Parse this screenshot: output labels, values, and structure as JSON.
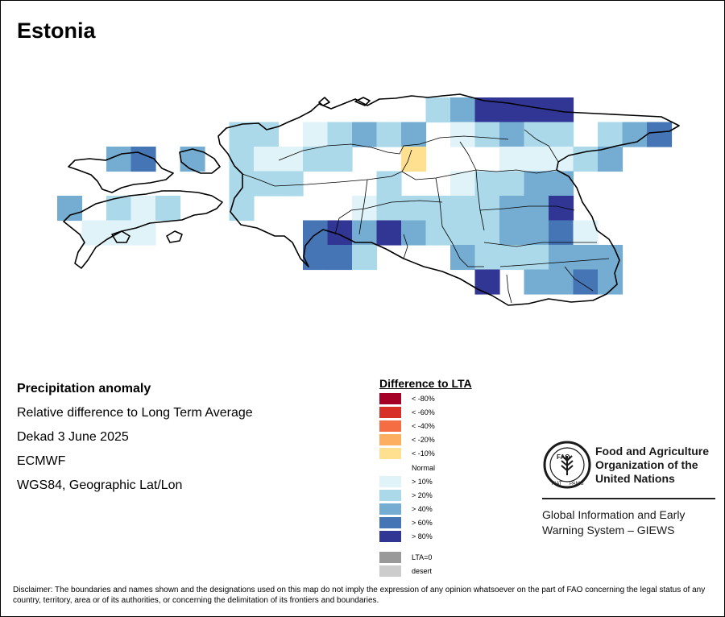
{
  "title": "Estonia",
  "info": {
    "heading": "Precipitation anomaly",
    "line1": "Relative difference to Long Term Average",
    "line2": "Dekad 3 June 2025",
    "line3": "ECMWF",
    "line4": "WGS84, Geographic Lat/Lon"
  },
  "legend": {
    "title": "Difference to LTA",
    "items": [
      {
        "label": "< -80%",
        "color": "#a50026"
      },
      {
        "label": "< -60%",
        "color": "#d73027"
      },
      {
        "label": "< -40%",
        "color": "#f46d43"
      },
      {
        "label": "< -20%",
        "color": "#fdae61"
      },
      {
        "label": "< -10%",
        "color": "#fee090"
      },
      {
        "label": "Normal",
        "color": "none"
      },
      {
        "label": "> 10%",
        "color": "#e0f3f8"
      },
      {
        "label": "> 20%",
        "color": "#abd9e9"
      },
      {
        "label": "> 40%",
        "color": "#74add1"
      },
      {
        "label": "> 60%",
        "color": "#4575b4"
      },
      {
        "label": "> 80%",
        "color": "#313695"
      },
      {
        "label": "LTA=0",
        "color": "#999999"
      },
      {
        "label": "desert",
        "color": "#cccccc"
      }
    ]
  },
  "fao": {
    "name_line1": "Food and Agriculture",
    "name_line2": "Organization of the",
    "name_line3": "United Nations",
    "giews_line1": "Global Information and Early",
    "giews_line2": "Warning System – GIEWS",
    "logo_text_left": "FIAT",
    "logo_text_right": "PANIS",
    "logo_letters": "FAO"
  },
  "disclaimer": "Disclaimer: The boundaries and names shown and the designations used on this map do not imply the expression of any opinion whatsoever on the part of FAO concerning the legal status of any country, territory, area or of its authorities, or concerning the delimitation of its frontiers and boundaries."
}
